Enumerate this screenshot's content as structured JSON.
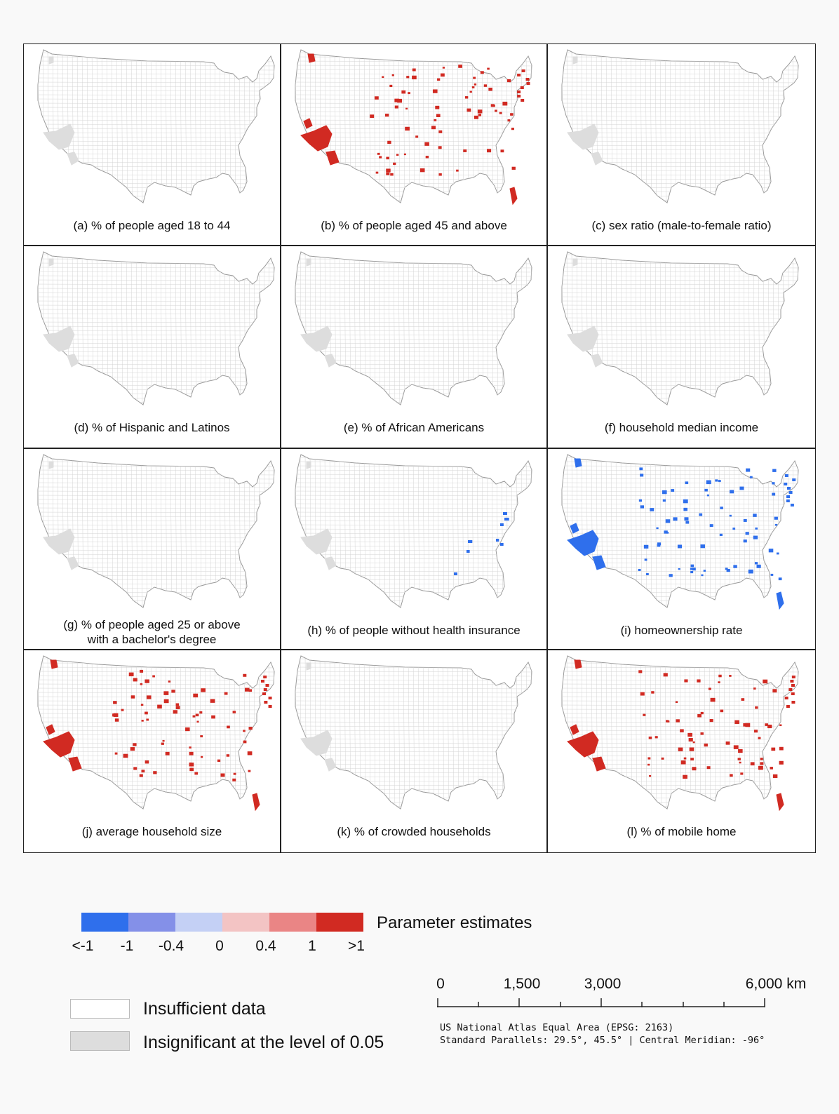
{
  "panels": [
    {
      "id": "a",
      "caption": "(a) % of people aged 18 to 44",
      "caption2": "",
      "pattern": "insig"
    },
    {
      "id": "b",
      "caption": "(b) % of people aged 45 and above",
      "caption2": "",
      "pattern": "pos"
    },
    {
      "id": "c",
      "caption": "(c) sex ratio (male-to-female ratio)",
      "caption2": "",
      "pattern": "insig"
    },
    {
      "id": "d",
      "caption": "(d) % of Hispanic and Latinos",
      "caption2": "",
      "pattern": "insig"
    },
    {
      "id": "e",
      "caption": "(e) % of African Americans",
      "caption2": "",
      "pattern": "insig"
    },
    {
      "id": "f",
      "caption": "(f) household median income",
      "caption2": "",
      "pattern": "insig"
    },
    {
      "id": "g",
      "caption": "(g) % of people aged 25 or above",
      "caption2": "with a bachelor's degree",
      "pattern": "insig"
    },
    {
      "id": "h",
      "caption": "(h) % of people without health insurance",
      "caption2": "",
      "pattern": "neg_sparse"
    },
    {
      "id": "i",
      "caption": "(i) homeownership rate",
      "caption2": "",
      "pattern": "neg"
    },
    {
      "id": "j",
      "caption": "(j) average household size",
      "caption2": "",
      "pattern": "pos"
    },
    {
      "id": "k",
      "caption": "(k) % of crowded households",
      "caption2": "",
      "pattern": "insig"
    },
    {
      "id": "l",
      "caption": "(l) % of mobile home",
      "caption2": "",
      "pattern": "pos"
    }
  ],
  "legend": {
    "title": "Parameter estimates",
    "colors": [
      "#2f6fec",
      "#8490e8",
      "#c4d0f5",
      "#f3c4c4",
      "#ea8585",
      "#d12a22"
    ],
    "ticks": [
      "<-1",
      "-1",
      "-0.4",
      "0",
      "0.4",
      "1",
      ">1"
    ],
    "insufficient_label": "Insufficient data",
    "insignificant_label": "Insignificant at the level of 0.05",
    "insufficient_color": "#ffffff",
    "insignificant_color": "#dddddd"
  },
  "scale": {
    "labels": [
      "0",
      "1,500",
      "3,000",
      "6,000 km"
    ],
    "crs_line1": "US National Atlas Equal Area (EPSG: 2163)",
    "crs_line2": "Standard Parallels: 29.5°, 45.5° | Central Meridian: -96°"
  }
}
